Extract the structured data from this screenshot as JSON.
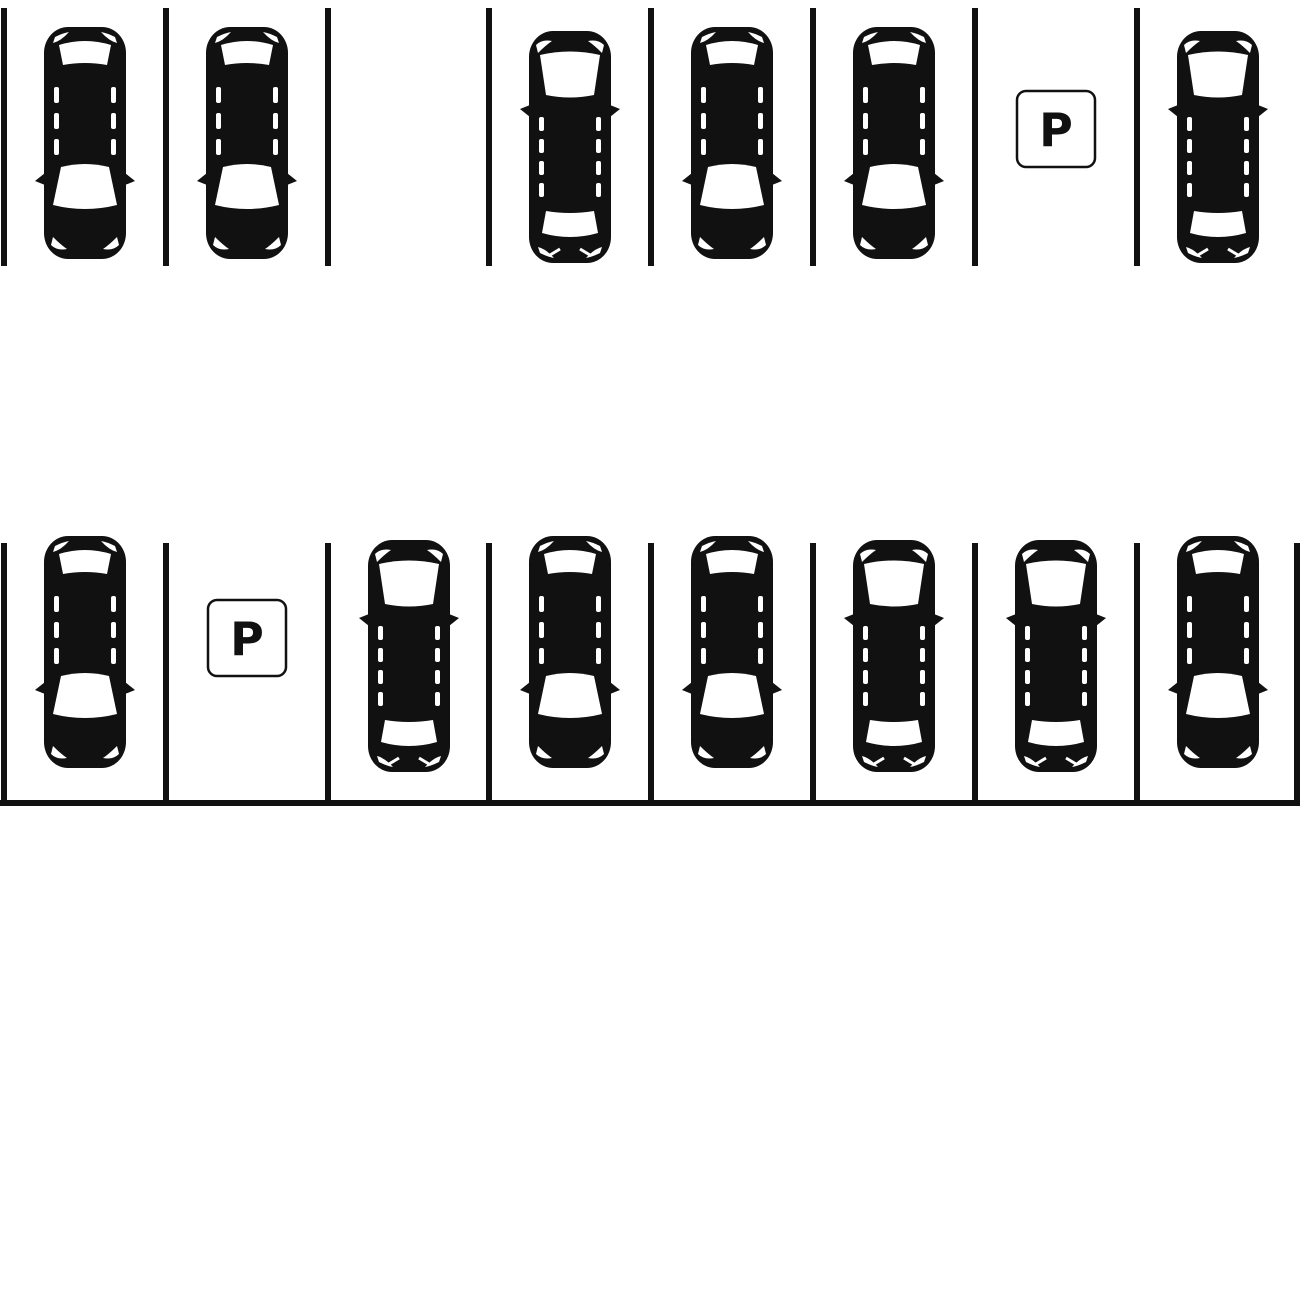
{
  "scene": {
    "line_color": "#111111",
    "car_color": "#111111",
    "glass_color": "#ffffff",
    "background": "#ffffff"
  },
  "rows": [
    {
      "id": "top",
      "spaces": [
        {
          "content": "car",
          "facing": "down",
          "style": "sedan"
        },
        {
          "content": "car",
          "facing": "down",
          "style": "sedan"
        },
        {
          "content": "empty"
        },
        {
          "content": "car",
          "facing": "up",
          "style": "suv"
        },
        {
          "content": "car",
          "facing": "down",
          "style": "sedan"
        },
        {
          "content": "car",
          "facing": "down",
          "style": "sedan"
        },
        {
          "content": "sign",
          "label": "P"
        },
        {
          "content": "car",
          "facing": "up",
          "style": "suv"
        }
      ]
    },
    {
      "id": "bottom",
      "spaces": [
        {
          "content": "car",
          "facing": "down",
          "style": "sedan"
        },
        {
          "content": "sign",
          "label": "P"
        },
        {
          "content": "car",
          "facing": "up",
          "style": "suv"
        },
        {
          "content": "car",
          "facing": "down",
          "style": "sedan"
        },
        {
          "content": "car",
          "facing": "down",
          "style": "sedan"
        },
        {
          "content": "car",
          "facing": "up",
          "style": "suv"
        },
        {
          "content": "car",
          "facing": "up",
          "style": "suv"
        },
        {
          "content": "car",
          "facing": "down",
          "style": "sedan"
        }
      ]
    }
  ]
}
